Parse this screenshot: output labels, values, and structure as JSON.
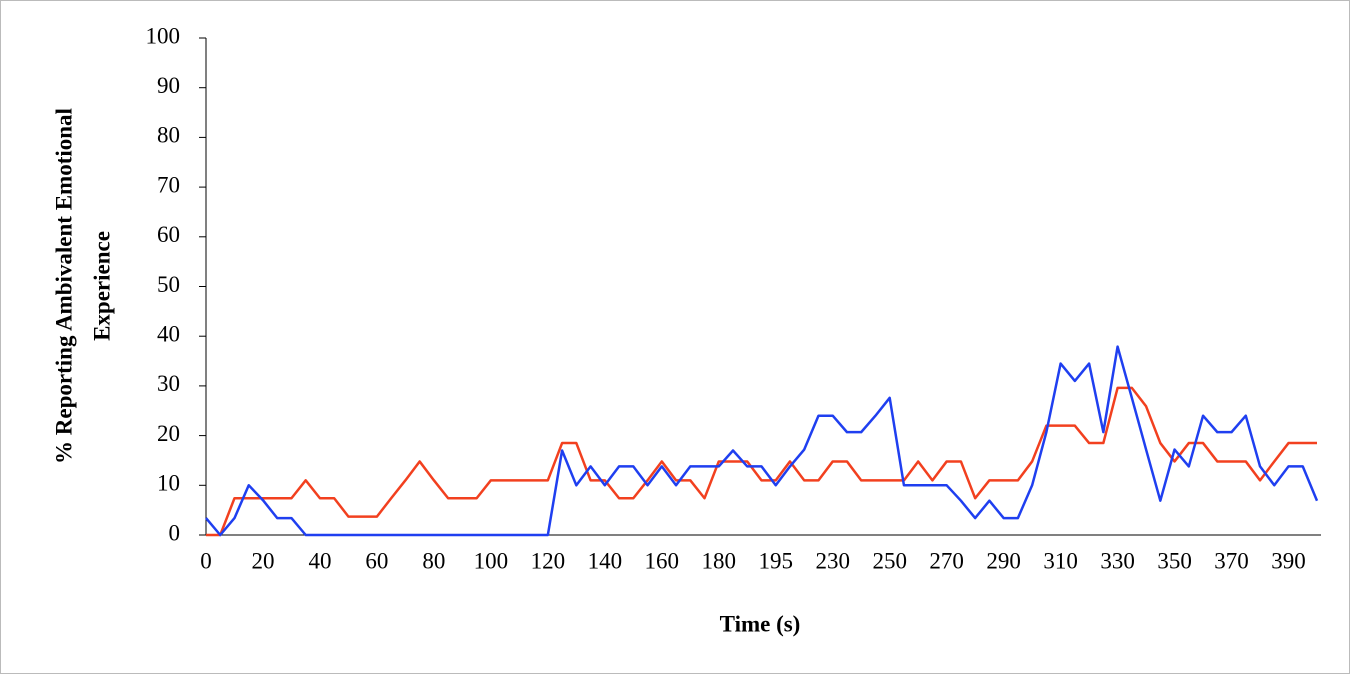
{
  "chart_data": {
    "type": "line",
    "y_label": [
      "% Reporting Ambivalent Emotional",
      "Experience"
    ],
    "x_label": "Time (s)",
    "categories": [
      "0",
      null,
      null,
      null,
      "20",
      null,
      null,
      null,
      "40",
      null,
      null,
      null,
      "60",
      null,
      null,
      null,
      "80",
      null,
      null,
      null,
      "100",
      null,
      null,
      null,
      "120",
      null,
      null,
      null,
      "140",
      null,
      null,
      null,
      "160",
      null,
      null,
      null,
      "180",
      null,
      null,
      null,
      "195",
      null,
      null,
      null,
      "230",
      null,
      null,
      null,
      "250",
      null,
      null,
      null,
      "270",
      null,
      null,
      null,
      "290",
      null,
      null,
      null,
      "310",
      null,
      null,
      null,
      "330",
      null,
      null,
      null,
      "350",
      null,
      null,
      null,
      "370",
      null,
      null,
      null,
      "390",
      null,
      null
    ],
    "series": [
      {
        "color": "#f2401f",
        "values": [
          0,
          0,
          7.4,
          7.4,
          7.4,
          7.4,
          7.4,
          11,
          7.4,
          7.4,
          3.7,
          3.7,
          3.7,
          7.4,
          11,
          14.8,
          11,
          7.4,
          7.4,
          7.4,
          11,
          11,
          11,
          11,
          11,
          18.5,
          18.5,
          11,
          11,
          7.4,
          7.4,
          11,
          14.8,
          11,
          11,
          7.4,
          14.8,
          14.8,
          14.8,
          11,
          11,
          14.8,
          11,
          11,
          14.8,
          14.8,
          11,
          11,
          11,
          11,
          14.8,
          11,
          14.8,
          14.8,
          7.4,
          11,
          11,
          11,
          14.8,
          22,
          22,
          22,
          18.5,
          18.5,
          29.6,
          29.6,
          25.9,
          18.5,
          14.8,
          18.5,
          18.5,
          14.8,
          14.8,
          14.8,
          11,
          14.8,
          18.5,
          18.5,
          18.5
        ]
      },
      {
        "color": "#1f3ff0",
        "values": [
          3.4,
          0,
          3.4,
          10,
          7,
          3.4,
          3.4,
          0,
          0,
          0,
          0,
          0,
          0,
          0,
          0,
          0,
          0,
          0,
          0,
          0,
          0,
          0,
          0,
          0,
          0,
          17,
          10,
          13.8,
          10,
          13.8,
          13.8,
          10,
          13.8,
          10,
          13.8,
          13.8,
          13.8,
          17,
          13.8,
          13.8,
          10,
          13.8,
          17.2,
          24,
          24,
          20.7,
          20.7,
          24,
          27.6,
          10,
          10,
          10,
          10,
          6.9,
          3.4,
          6.9,
          3.4,
          3.4,
          10,
          20.7,
          34.5,
          31,
          34.5,
          20.7,
          37.9,
          27.6,
          17.2,
          6.9,
          17.2,
          13.8,
          24,
          20.7,
          20.7,
          24,
          13.8,
          10,
          13.8,
          13.8,
          6.9
        ]
      }
    ],
    "ylim": [
      0,
      100
    ],
    "yticks": [
      0,
      10,
      20,
      30,
      40,
      50,
      60,
      70,
      80,
      90,
      100
    ]
  }
}
